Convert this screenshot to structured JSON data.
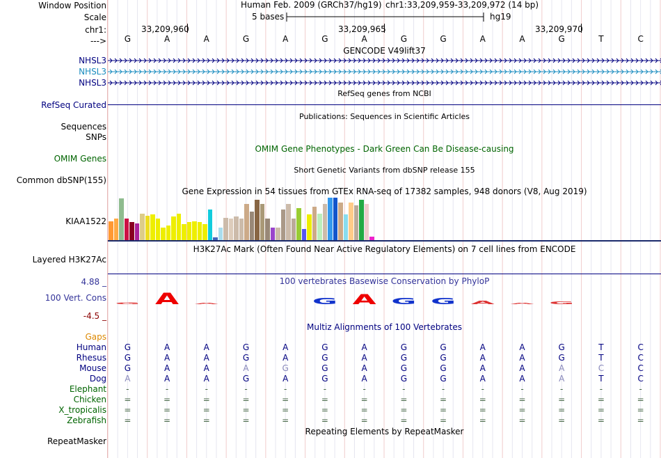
{
  "header": {
    "window_position_label": "Window Position",
    "assembly": "Human Feb. 2009 (GRCh37/hg19)",
    "position": "chr1:33,209,959-33,209,972 (14 bp)",
    "scale_label": "Scale",
    "scale_text": "5 bases",
    "scale_db": "hg19",
    "chrom_label": "chr1:",
    "coords": [
      "33,209,960",
      "33,209,965",
      "33,209,970"
    ],
    "strand_label": "--->"
  },
  "sequence": [
    "G",
    "A",
    "A",
    "G",
    "A",
    "G",
    "A",
    "G",
    "G",
    "A",
    "A",
    "G",
    "T",
    "C"
  ],
  "gencode": {
    "title": "GENCODE V49lift37",
    "tracks": [
      {
        "name": "NHSL3",
        "color": "#000080"
      },
      {
        "name": "NHSL3",
        "color": "#1a8cbf"
      },
      {
        "name": "NHSL3",
        "color": "#000080"
      }
    ]
  },
  "refseq": {
    "title": "RefSeq genes from NCBI",
    "label": "RefSeq Curated"
  },
  "publications": {
    "title": "Publications: Sequences in Scientific Articles",
    "label1": "Sequences",
    "label2": "SNPs"
  },
  "omim": {
    "title": "OMIM Gene Phenotypes - Dark Green Can Be Disease-causing",
    "label": "OMIM Genes"
  },
  "dbsnp": {
    "title": "Short Genetic Variants from dbSNP release 155",
    "label": "Common dbSNP(155)"
  },
  "gtex": {
    "title": "Gene Expression in 54 tissues from GTEx RNA-seq of 17382 samples, 948 donors (V8, Aug 2019)",
    "label": "KIAA1522",
    "bars": [
      {
        "v": 0.45,
        "c": "#ff9933"
      },
      {
        "v": 0.5,
        "c": "#ffaa44"
      },
      {
        "v": 0.98,
        "c": "#8fbc8f"
      },
      {
        "v": 0.5,
        "c": "#cc1144"
      },
      {
        "v": 0.42,
        "c": "#880022"
      },
      {
        "v": 0.4,
        "c": "#aa2299"
      },
      {
        "v": 0.62,
        "c": "#ddcc88"
      },
      {
        "v": 0.58,
        "c": "#eedd22"
      },
      {
        "v": 0.6,
        "c": "#eeee00"
      },
      {
        "v": 0.5,
        "c": "#eeee00"
      },
      {
        "v": 0.3,
        "c": "#eeee00"
      },
      {
        "v": 0.35,
        "c": "#eeee00"
      },
      {
        "v": 0.55,
        "c": "#eeee00"
      },
      {
        "v": 0.62,
        "c": "#eeee00"
      },
      {
        "v": 0.38,
        "c": "#eeee00"
      },
      {
        "v": 0.42,
        "c": "#eeee00"
      },
      {
        "v": 0.45,
        "c": "#eeee00"
      },
      {
        "v": 0.42,
        "c": "#eeee00"
      },
      {
        "v": 0.38,
        "c": "#eeee00"
      },
      {
        "v": 0.72,
        "c": "#11ccdd"
      },
      {
        "v": 0.06,
        "c": "#4466bb"
      },
      {
        "v": 0.3,
        "c": "#aaddee"
      },
      {
        "v": 0.52,
        "c": "#ccbbaa"
      },
      {
        "v": 0.5,
        "c": "#ddccbb"
      },
      {
        "v": 0.55,
        "c": "#ccbbaa"
      },
      {
        "v": 0.5,
        "c": "#ccbbaa"
      },
      {
        "v": 0.85,
        "c": "#ccaa88"
      },
      {
        "v": 0.68,
        "c": "#998877"
      },
      {
        "v": 0.95,
        "c": "#886644"
      },
      {
        "v": 0.85,
        "c": "#aa9977"
      },
      {
        "v": 0.5,
        "c": "#998877"
      },
      {
        "v": 0.3,
        "c": "#9944cc"
      },
      {
        "v": 0.3,
        "c": "#ccbbaa"
      },
      {
        "v": 0.72,
        "c": "#aa9988"
      },
      {
        "v": 0.85,
        "c": "#ccbbaa"
      },
      {
        "v": 0.5,
        "c": "#bbaa99"
      },
      {
        "v": 0.76,
        "c": "#99cc33"
      },
      {
        "v": 0.26,
        "c": "#5555ee"
      },
      {
        "v": 0.6,
        "c": "#eeee00"
      },
      {
        "v": 0.78,
        "c": "#ccaa88"
      },
      {
        "v": 0.62,
        "c": "#bbeebb"
      },
      {
        "v": 0.85,
        "c": "#ccbbaa"
      },
      {
        "v": 1.0,
        "c": "#3399ee"
      },
      {
        "v": 1.0,
        "c": "#1155cc"
      },
      {
        "v": 0.88,
        "c": "#ccaa88"
      },
      {
        "v": 0.6,
        "c": "#88ddee"
      },
      {
        "v": 0.88,
        "c": "#ffcc88"
      },
      {
        "v": 0.82,
        "c": "#bbaa99"
      },
      {
        "v": 0.95,
        "c": "#22aa44"
      },
      {
        "v": 0.85,
        "c": "#eecccc"
      },
      {
        "v": 0.08,
        "c": "#ee22cc"
      }
    ]
  },
  "h3k27ac": {
    "title": "H3K27Ac Mark (Often Found Near Active Regulatory Elements) on 7 cell lines from ENCODE",
    "label": "Layered H3K27Ac"
  },
  "conservation": {
    "title": "100 vertebrates Basewise Conservation by PhyloP",
    "label": "100 Vert. Cons",
    "max": "4.88 _",
    "min": "-4.5 _",
    "logo": [
      {
        "ch": "G",
        "c": "#dd3333",
        "h": 0.15
      },
      {
        "ch": "A",
        "c": "#ee0000",
        "h": 1.0
      },
      {
        "ch": "A",
        "c": "#dd3333",
        "h": 0.1
      },
      {
        "ch": "",
        "c": "#ffffff",
        "h": 0
      },
      {
        "ch": "",
        "c": "#ffffff",
        "h": 0
      },
      {
        "ch": "G",
        "c": "#1133cc",
        "h": 0.55
      },
      {
        "ch": "A",
        "c": "#ee0000",
        "h": 0.9
      },
      {
        "ch": "G",
        "c": "#1133cc",
        "h": 0.55
      },
      {
        "ch": "G",
        "c": "#1133cc",
        "h": 0.55
      },
      {
        "ch": "A",
        "c": "#dd3333",
        "h": 0.3
      },
      {
        "ch": "A",
        "c": "#dd3333",
        "h": 0.1
      },
      {
        "ch": "G",
        "c": "#dd3333",
        "h": 0.25
      },
      {
        "ch": "",
        "c": "#ffffff",
        "h": 0
      },
      {
        "ch": "",
        "c": "#ffffff",
        "h": 0
      }
    ]
  },
  "multiz": {
    "title": "Multiz Alignments of 100 Vertebrates",
    "gaps_label": "Gaps",
    "species": [
      {
        "name": "Human",
        "bases": [
          "G",
          "A",
          "A",
          "G",
          "A",
          "G",
          "A",
          "G",
          "G",
          "A",
          "A",
          "G",
          "T",
          "C"
        ],
        "dim": []
      },
      {
        "name": "Rhesus",
        "bases": [
          "G",
          "A",
          "A",
          "G",
          "A",
          "G",
          "A",
          "G",
          "G",
          "A",
          "A",
          "G",
          "T",
          "C"
        ],
        "dim": []
      },
      {
        "name": "Mouse",
        "bases": [
          "G",
          "A",
          "A",
          "A",
          "G",
          "G",
          "A",
          "G",
          "G",
          "A",
          "A",
          "A",
          "C",
          "C"
        ],
        "dim": [
          3,
          4,
          11,
          12
        ]
      },
      {
        "name": "Dog",
        "bases": [
          "A",
          "A",
          "A",
          "G",
          "A",
          "G",
          "A",
          "G",
          "G",
          "A",
          "A",
          "A",
          "T",
          "C"
        ],
        "dim": [
          0,
          11
        ]
      },
      {
        "name": "Elephant",
        "bases": [
          "-",
          "-",
          "-",
          "-",
          "-",
          "-",
          "-",
          "-",
          "-",
          "-",
          "-",
          "-",
          "-",
          "-"
        ],
        "dim": []
      },
      {
        "name": "Chicken",
        "bases": [
          "=",
          "=",
          "=",
          "=",
          "=",
          "=",
          "=",
          "=",
          "=",
          "=",
          "=",
          "=",
          "=",
          "="
        ],
        "dim": []
      },
      {
        "name": "X_tropicalis",
        "bases": [
          "=",
          "=",
          "=",
          "=",
          "=",
          "=",
          "=",
          "=",
          "=",
          "=",
          "=",
          "=",
          "=",
          "="
        ],
        "dim": []
      },
      {
        "name": "Zebrafish",
        "bases": [
          "=",
          "=",
          "=",
          "=",
          "=",
          "=",
          "=",
          "=",
          "=",
          "=",
          "=",
          "=",
          "=",
          "="
        ],
        "dim": []
      }
    ]
  },
  "repeatmasker": {
    "title": "Repeating Elements by RepeatMasker",
    "label": "RepeatMasker"
  }
}
